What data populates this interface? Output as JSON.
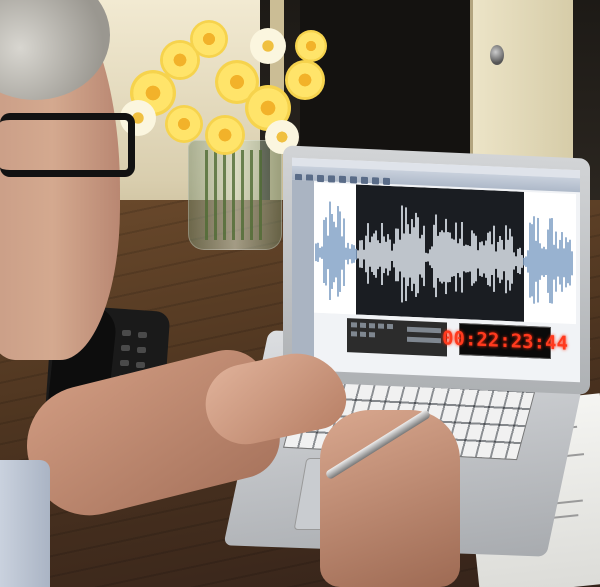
{
  "laptop": {
    "counter_display": "00:22:23:44"
  },
  "colors": {
    "counter_red": "#ff3a1e",
    "waveform_blue": "#7f9ec4",
    "daffodil_yellow": "#ffe46a",
    "table_wood": "#4e3520"
  }
}
